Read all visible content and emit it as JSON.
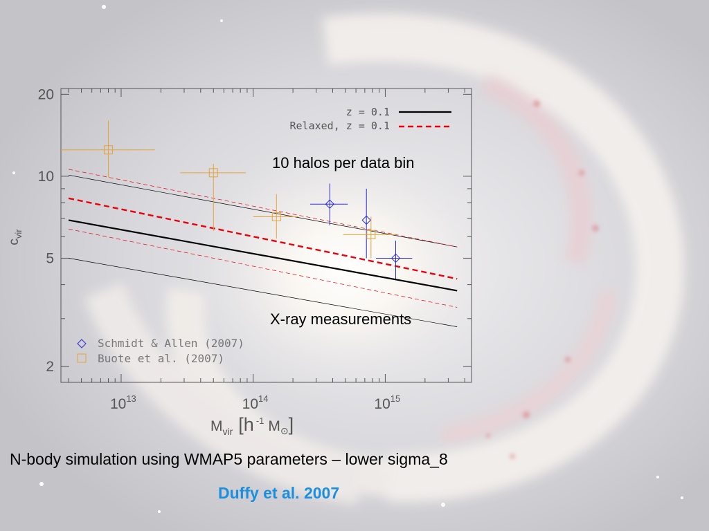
{
  "slide": {
    "caption": "N-body simulation using WMAP5 parameters – lower sigma_8",
    "citation": "Duffy et al. 2007",
    "colors": {
      "caption": "#000000",
      "citation": "#1a8fe0",
      "axes": "#555555"
    },
    "background": "galaxy-photo"
  },
  "chart_data": {
    "type": "scatter",
    "x_scale": "log",
    "y_scale": "log",
    "xlim": [
      3500000000000.0,
      4500000000000000.0
    ],
    "ylim": [
      1.75,
      21
    ],
    "x_ticks": [
      {
        "value": 10000000000000.0,
        "base": "10",
        "exp": "13"
      },
      {
        "value": 100000000000000.0,
        "base": "10",
        "exp": "14"
      },
      {
        "value": 1000000000000000.0,
        "base": "10",
        "exp": "15"
      }
    ],
    "y_ticks": [
      {
        "value": 2,
        "label": "2"
      },
      {
        "value": 5,
        "label": "5"
      },
      {
        "value": 10,
        "label": "10"
      },
      {
        "value": 20,
        "label": "20"
      }
    ],
    "xlabel": {
      "main": "M",
      "sub": "vir",
      "units": "[h",
      "units_exp": "-1",
      "units_tail": "M",
      "sun": "⊙",
      "close": "]"
    },
    "ylabel": {
      "main": "c",
      "sub": "vir"
    },
    "legend_lines": [
      {
        "label": "z = 0.1",
        "color": "#000000",
        "dash": "solid"
      },
      {
        "label": "Relaxed, z = 0.1",
        "color": "#e8000b",
        "dash": "dashed"
      }
    ],
    "legend_points": [
      {
        "label": "Schmidt & Allen (2007)",
        "marker": "diamond",
        "color": "#2c2cd8"
      },
      {
        "label": "Buote et al. (2007)",
        "marker": "square",
        "color": "#e8a23a"
      }
    ],
    "annotations": [
      "10 halos per data bin",
      "X-ray measurements"
    ],
    "series": [
      {
        "name": "z = 0.1",
        "kind": "line",
        "color": "#000000",
        "width": 2.2,
        "dash": "",
        "x": [
          4000000000000.0,
          3500000000000000.0
        ],
        "y": [
          6.9,
          3.8
        ]
      },
      {
        "name": "Relaxed, z = 0.1",
        "kind": "line",
        "color": "#e8000b",
        "width": 2.4,
        "dash": "8,5",
        "x": [
          4000000000000.0,
          3500000000000000.0
        ],
        "y": [
          8.3,
          4.2
        ]
      },
      {
        "kind": "line",
        "color": "#000000",
        "width": 0.7,
        "dash": "",
        "x": [
          4000000000000.0,
          3500000000000000.0
        ],
        "y": [
          10.1,
          5.5
        ]
      },
      {
        "kind": "line",
        "color": "#000000",
        "width": 0.7,
        "dash": "",
        "x": [
          4000000000000.0,
          3500000000000000.0
        ],
        "y": [
          5.0,
          2.8
        ]
      },
      {
        "kind": "line",
        "color": "#e8000b",
        "width": 0.7,
        "dash": "6,4",
        "x": [
          4000000000000.0,
          3500000000000000.0
        ],
        "y": [
          10.6,
          5.5
        ]
      },
      {
        "kind": "line",
        "color": "#e8000b",
        "width": 0.7,
        "dash": "6,4",
        "x": [
          4000000000000.0,
          3500000000000000.0
        ],
        "y": [
          6.4,
          3.3
        ]
      }
    ],
    "points": [
      {
        "set": "Schmidt & Allen (2007)",
        "marker": "diamond",
        "color": "#2c2cd8",
        "data": [
          {
            "x": 380000000000000.0,
            "y": 7.9,
            "xerr": [
              270000000000000.0,
              520000000000000.0
            ],
            "yerr": [
              6.6,
              9.4
            ]
          },
          {
            "x": 720000000000000.0,
            "y": 6.9,
            "xerr": [
              720000000000000.0,
              720000000000000.0
            ],
            "yerr": [
              5.0,
              9.0
            ]
          },
          {
            "x": 1200000000000000.0,
            "y": 5.0,
            "xerr": [
              850000000000000.0,
              1600000000000000.0
            ],
            "yerr": [
              4.2,
              5.8
            ]
          }
        ]
      },
      {
        "set": "Buote et al. (2007)",
        "marker": "square",
        "color": "#e8a23a",
        "data": [
          {
            "x": 8000000000000.0,
            "y": 12.5,
            "xerr": [
              3500000000000.0,
              18000000000000.0
            ],
            "yerr": [
              9.9,
              16
            ]
          },
          {
            "x": 50000000000000.0,
            "y": 10.3,
            "xerr": [
              28000000000000.0,
              88000000000000.0
            ],
            "yerr": [
              6.3,
              11.1
            ]
          },
          {
            "x": 150000000000000.0,
            "y": 7.1,
            "xerr": [
              100000000000000.0,
              220000000000000.0
            ],
            "yerr": [
              5.9,
              8.6
            ]
          },
          {
            "x": 780000000000000.0,
            "y": 6.1,
            "xerr": [
              480000000000000.0,
              1200000000000000.0
            ],
            "yerr": [
              5.0,
              7.1
            ]
          }
        ]
      }
    ]
  }
}
